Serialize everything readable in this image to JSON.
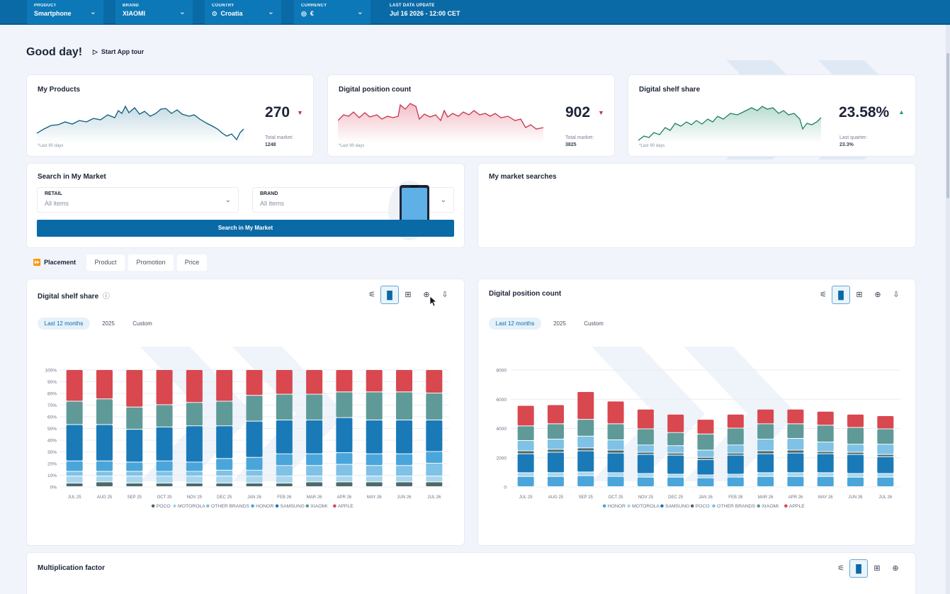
{
  "topbar": {
    "filters": [
      {
        "label": "PRODUCT",
        "value": "Smartphone"
      },
      {
        "label": "BRAND",
        "value": "XIAOMI"
      },
      {
        "label": "COUNTRY",
        "value": "Croatia"
      },
      {
        "label": "CURRENCY",
        "value": "€"
      }
    ],
    "data_update": {
      "label": "LAST DATA UPDATE",
      "value": "Jul 16 2026 - 12:00 CET"
    }
  },
  "greeting": "Good day!",
  "tour_label": "Start App tour",
  "kpis": [
    {
      "title": "My Products",
      "value": "270",
      "trend": "down",
      "sub_label": "Total market:",
      "sub_value": "1248",
      "note": "*Last 90 days",
      "color": "#0a5a7a"
    },
    {
      "title": "Digital position count",
      "value": "902",
      "trend": "down",
      "sub_label": "Total market:",
      "sub_value": "3825",
      "note": "*Last 90 days",
      "color": "#c8354a"
    },
    {
      "title": "Digital shelf share",
      "value": "23.58%",
      "trend": "up",
      "sub_label": "Last quarter:",
      "sub_value": "23.3%",
      "note": "*Last 90 days",
      "color": "#1e8060"
    }
  ],
  "search": {
    "title": "Search in My Market",
    "retail_label": "RETAIL",
    "retail_value": "All items",
    "brand_label": "BRAND",
    "brand_value": "All items",
    "button": "Search in My Market"
  },
  "searches_title": "My market searches",
  "tabs": [
    "Placement",
    "Product",
    "Promotion",
    "Price"
  ],
  "periods": [
    "Last 12 months",
    "2025",
    "Custom"
  ],
  "multiplication_title": "Multiplication factor",
  "colors": {
    "apple": "#d9474f",
    "xiaomi": "#5f9a98",
    "samsung": "#1a7ab8",
    "honor": "#4aa6da",
    "other_brands": "#7fc2e6",
    "motorola": "#a8d6ee",
    "poco": "#4e6a6a"
  },
  "chart_data": [
    {
      "type": "bar",
      "stacked": true,
      "title": "Digital shelf share",
      "categories": [
        "JUL 25",
        "AUG 25",
        "SEP 25",
        "OCT 25",
        "NOV 25",
        "DEC 25",
        "JAN 26",
        "FEB 26",
        "MAR 26",
        "APR 26",
        "MAY 26",
        "JUN 26",
        "JUL 26"
      ],
      "ylim": [
        0,
        100
      ],
      "yticks": [
        "0%",
        "10%",
        "20%",
        "30%",
        "40%",
        "50%",
        "60%",
        "70%",
        "80%",
        "90%",
        "100%"
      ],
      "legend": [
        "POCO",
        "MOTOROLA",
        "OTHER BRANDS",
        "HONOR",
        "SAMSUNG",
        "XIAOMI",
        "APPLE"
      ],
      "series": [
        {
          "name": "POCO",
          "color": "#4e6a6a",
          "values": [
            3,
            4,
            3,
            3,
            3,
            3,
            3,
            3,
            4,
            4,
            4,
            4,
            4
          ]
        },
        {
          "name": "MOTOROLA",
          "color": "#a8d6ee",
          "values": [
            6,
            5,
            6,
            6,
            6,
            6,
            6,
            6,
            5,
            5,
            5,
            5,
            5
          ]
        },
        {
          "name": "OTHER BRANDS",
          "color": "#7fc2e6",
          "values": [
            4,
            4,
            4,
            4,
            4,
            5,
            5,
            9,
            9,
            10,
            9,
            9,
            11
          ]
        },
        {
          "name": "HONOR",
          "color": "#4aa6da",
          "values": [
            9,
            9,
            8,
            9,
            8,
            10,
            11,
            10,
            10,
            10,
            10,
            10,
            10
          ]
        },
        {
          "name": "SAMSUNG",
          "color": "#1a7ab8",
          "values": [
            31,
            31,
            28,
            29,
            31,
            28,
            31,
            29,
            29,
            30,
            29,
            29,
            27
          ]
        },
        {
          "name": "XIAOMI",
          "color": "#5f9a98",
          "values": [
            20,
            22,
            19,
            19,
            20,
            21,
            22,
            22,
            22,
            22,
            24,
            24,
            23
          ]
        },
        {
          "name": "APPLE",
          "color": "#d9474f",
          "values": [
            27,
            25,
            32,
            30,
            28,
            27,
            22,
            21,
            21,
            19,
            19,
            19,
            20
          ]
        }
      ]
    },
    {
      "type": "bar",
      "stacked": true,
      "title": "Digital position count",
      "categories": [
        "JUL 25",
        "AUG 25",
        "SEP 25",
        "OCT 25",
        "NOV 25",
        "DEC 25",
        "JAN 26",
        "FEB 26",
        "MAR 26",
        "APR 26",
        "MAY 26",
        "JUN 26",
        "JUL 26"
      ],
      "ylim": [
        0,
        8000
      ],
      "yticks": [
        "0",
        "2000",
        "4000",
        "6000",
        "8000"
      ],
      "legend": [
        "HONOR",
        "MOTOROLA",
        "SAMSUNG",
        "POCO",
        "OTHER BRANDS",
        "XIAOMI",
        "APPLE"
      ],
      "series": [
        {
          "name": "HONOR",
          "color": "#4aa6da",
          "values": [
            700,
            700,
            750,
            700,
            650,
            650,
            600,
            650,
            700,
            700,
            700,
            650,
            650
          ]
        },
        {
          "name": "MOTOROLA",
          "color": "#a8d6ee",
          "values": [
            250,
            250,
            250,
            250,
            250,
            200,
            200,
            200,
            250,
            250,
            250,
            250,
            250
          ]
        },
        {
          "name": "SAMSUNG",
          "color": "#1a7ab8",
          "values": [
            1300,
            1400,
            1450,
            1350,
            1300,
            1300,
            1050,
            1300,
            1300,
            1350,
            1300,
            1300,
            1150
          ]
        },
        {
          "name": "POCO",
          "color": "#4e6a6a",
          "values": [
            200,
            200,
            200,
            200,
            150,
            150,
            150,
            150,
            200,
            200,
            150,
            150,
            150
          ]
        },
        {
          "name": "OTHER BRANDS",
          "color": "#7fc2e6",
          "values": [
            700,
            700,
            800,
            700,
            500,
            500,
            500,
            550,
            800,
            800,
            650,
            550,
            700
          ]
        },
        {
          "name": "XIAOMI",
          "color": "#5f9a98",
          "values": [
            1000,
            1050,
            1150,
            1100,
            1100,
            900,
            1100,
            1150,
            1050,
            1000,
            1150,
            1150,
            1050
          ]
        },
        {
          "name": "APPLE",
          "color": "#d9474f",
          "values": [
            1400,
            1300,
            1900,
            1550,
            1350,
            1250,
            1000,
            950,
            1000,
            1000,
            950,
            900,
            900
          ]
        }
      ]
    }
  ]
}
